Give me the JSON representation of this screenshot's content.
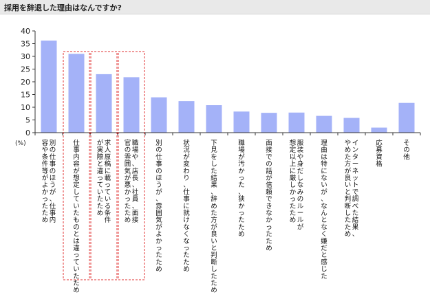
{
  "header": {
    "title": "採用を辞退した理由はなんですか?"
  },
  "chart_data": {
    "type": "bar",
    "y_unit_label": "(%)",
    "ylim": [
      0,
      40
    ],
    "yticks": [
      0,
      5,
      10,
      15,
      20,
      25,
      30,
      35,
      40
    ],
    "grid": false,
    "bar_color": "#a4b2f8",
    "highlight_color": "#e03030",
    "categories": [
      "別の仕事のほうが、仕事内容や条件等がよかったため",
      "仕事内容が想定していたものとは違っていたため",
      "求人原稿に載っている条件が実際と違っていたため",
      "職場や、店長、社員、面接官の雰囲気が悪かったため",
      "別の仕事のほうが、雰囲気がよかったため",
      "状況が変わり、仕事に就けなくなったため",
      "下見をした結果、辞めた方が良いと判断したため",
      "職場が汚かった、狭かったため",
      "面接での話が信頼できなかったため",
      "服装や身だしなみのルールが想定以上に厳しかったため",
      "理由は特にないが、なんとなく嫌だと感じた",
      "インターネットで調べた結果、やめた方が良いと判断したため",
      "応募資格",
      "その他"
    ],
    "values": [
      36.2,
      31.0,
      23.0,
      21.8,
      13.9,
      12.4,
      10.8,
      8.3,
      7.8,
      7.9,
      6.6,
      5.8,
      2.0,
      11.7
    ],
    "highlighted": [
      false,
      true,
      true,
      true,
      false,
      false,
      false,
      false,
      false,
      false,
      false,
      false,
      false,
      false
    ]
  }
}
